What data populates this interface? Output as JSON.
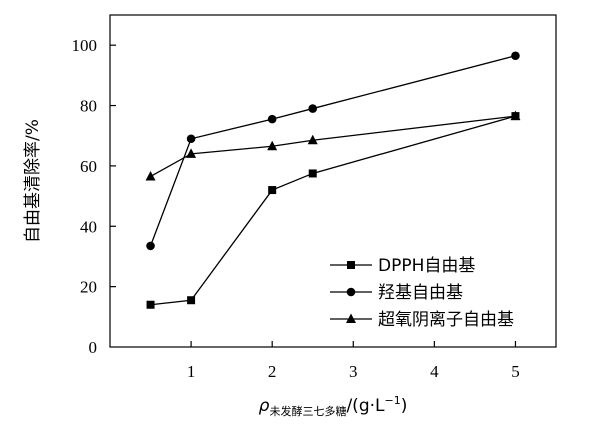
{
  "chart_data": {
    "type": "line",
    "title": "",
    "ylabel": "自由基清除率/%",
    "xlabel": {
      "symbol": "ρ",
      "subscript": "未发酵三七多糖",
      "unit": "/(g·L",
      "exponent": "−1",
      "close": ")"
    },
    "ylim": [
      0,
      110
    ],
    "xlim": [
      0,
      5.5
    ],
    "y_ticks": [
      0,
      20,
      40,
      60,
      80,
      100
    ],
    "y_tick_labels": [
      "0",
      "20",
      "40",
      "60",
      "80",
      "100"
    ],
    "x_ticks": [
      1,
      2,
      3,
      4,
      5
    ],
    "x_tick_labels": [
      "1",
      "2",
      "3",
      "4",
      "5"
    ],
    "grid": false,
    "legend_position": "bottom-right",
    "series": [
      {
        "name": "DPPH自由基",
        "marker": "square",
        "x": [
          0.5,
          1,
          2,
          2.5,
          5
        ],
        "values": [
          14,
          15.5,
          52,
          57.5,
          76.5
        ]
      },
      {
        "name": "羟基自由基",
        "marker": "circle",
        "x": [
          0.5,
          1,
          2,
          2.5,
          5
        ],
        "values": [
          33.5,
          69,
          75.5,
          79,
          96.5
        ]
      },
      {
        "name": "超氧阴离子自由基",
        "marker": "triangle",
        "x": [
          0.5,
          1,
          2,
          2.5,
          5
        ],
        "values": [
          56.5,
          64,
          66.5,
          68.5,
          76.5
        ]
      }
    ]
  }
}
